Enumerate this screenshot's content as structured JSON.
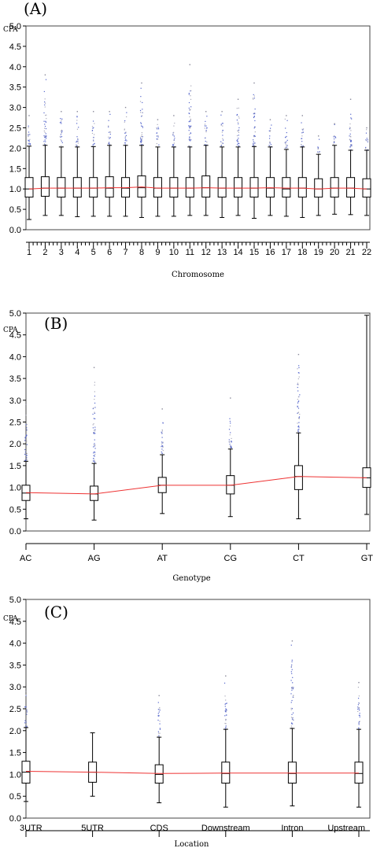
{
  "chart_data": [
    {
      "panel": "(A)",
      "type": "box",
      "ylabel": "CPA",
      "xlabel": "Chromosome",
      "ylim": [
        0,
        5
      ],
      "yticks": [
        "0.0",
        "0.5",
        "1.0",
        "1.5",
        "2.0",
        "2.5",
        "3.0",
        "3.5",
        "4.0",
        "4.5",
        "5.0"
      ],
      "categories": [
        "1",
        "2",
        "3",
        "4",
        "5",
        "6",
        "7",
        "8",
        "9",
        "10",
        "11",
        "12",
        "13",
        "14",
        "15",
        "16",
        "17",
        "18",
        "19",
        "20",
        "21",
        "22"
      ],
      "boxes": [
        {
          "q1": 0.8,
          "median": 1.0,
          "q3": 1.28,
          "wlo": 0.25,
          "whi": 2.05,
          "max": 2.8
        },
        {
          "q1": 0.82,
          "median": 1.02,
          "q3": 1.3,
          "wlo": 0.35,
          "whi": 2.07,
          "max": 3.8
        },
        {
          "q1": 0.8,
          "median": 1.02,
          "q3": 1.28,
          "wlo": 0.35,
          "whi": 2.03,
          "max": 2.9
        },
        {
          "q1": 0.8,
          "median": 1.02,
          "q3": 1.28,
          "wlo": 0.32,
          "whi": 2.03,
          "max": 2.9
        },
        {
          "q1": 0.8,
          "median": 1.02,
          "q3": 1.28,
          "wlo": 0.33,
          "whi": 2.04,
          "max": 2.9
        },
        {
          "q1": 0.8,
          "median": 1.02,
          "q3": 1.3,
          "wlo": 0.33,
          "whi": 2.07,
          "max": 2.9
        },
        {
          "q1": 0.8,
          "median": 1.02,
          "q3": 1.28,
          "wlo": 0.33,
          "whi": 2.07,
          "max": 3.0
        },
        {
          "q1": 0.8,
          "median": 1.03,
          "q3": 1.32,
          "wlo": 0.3,
          "whi": 2.07,
          "max": 3.6
        },
        {
          "q1": 0.8,
          "median": 1.02,
          "q3": 1.28,
          "wlo": 0.33,
          "whi": 2.03,
          "max": 2.7
        },
        {
          "q1": 0.8,
          "median": 1.02,
          "q3": 1.28,
          "wlo": 0.33,
          "whi": 2.03,
          "max": 2.8
        },
        {
          "q1": 0.8,
          "median": 1.02,
          "q3": 1.28,
          "wlo": 0.35,
          "whi": 2.03,
          "max": 4.05
        },
        {
          "q1": 0.8,
          "median": 1.03,
          "q3": 1.32,
          "wlo": 0.35,
          "whi": 2.07,
          "max": 2.9
        },
        {
          "q1": 0.8,
          "median": 1.02,
          "q3": 1.28,
          "wlo": 0.3,
          "whi": 2.03,
          "max": 2.9
        },
        {
          "q1": 0.8,
          "median": 1.02,
          "q3": 1.28,
          "wlo": 0.35,
          "whi": 2.03,
          "max": 3.2
        },
        {
          "q1": 0.8,
          "median": 1.02,
          "q3": 1.28,
          "wlo": 0.28,
          "whi": 2.04,
          "max": 3.6
        },
        {
          "q1": 0.8,
          "median": 1.02,
          "q3": 1.28,
          "wlo": 0.35,
          "whi": 2.03,
          "max": 2.7
        },
        {
          "q1": 0.8,
          "median": 1.0,
          "q3": 1.28,
          "wlo": 0.33,
          "whi": 1.97,
          "max": 2.8
        },
        {
          "q1": 0.8,
          "median": 1.02,
          "q3": 1.28,
          "wlo": 0.3,
          "whi": 2.03,
          "max": 2.8
        },
        {
          "q1": 0.8,
          "median": 1.0,
          "q3": 1.25,
          "wlo": 0.35,
          "whi": 1.85,
          "max": 2.3
        },
        {
          "q1": 0.8,
          "median": 1.02,
          "q3": 1.28,
          "wlo": 0.38,
          "whi": 2.07,
          "max": 2.6
        },
        {
          "q1": 0.8,
          "median": 1.02,
          "q3": 1.28,
          "wlo": 0.37,
          "whi": 1.95,
          "max": 3.2
        },
        {
          "q1": 0.8,
          "median": 1.0,
          "q3": 1.25,
          "wlo": 0.35,
          "whi": 1.95,
          "max": 2.5
        }
      ],
      "mean_line": [
        1.0,
        1.02,
        1.02,
        1.02,
        1.02,
        1.03,
        1.03,
        1.05,
        1.02,
        1.02,
        1.02,
        1.03,
        1.02,
        1.02,
        1.02,
        1.03,
        1.02,
        1.02,
        1.0,
        1.02,
        1.02,
        1.0
      ]
    },
    {
      "panel": "(B)",
      "type": "box",
      "ylabel": "CPA",
      "xlabel": "Genotype",
      "ylim": [
        0,
        5
      ],
      "yticks": [
        "0.0",
        "0.5",
        "1.0",
        "1.5",
        "2.0",
        "2.5",
        "3.0",
        "3.5",
        "4.0",
        "4.5",
        "5.0"
      ],
      "categories": [
        "AC",
        "AG",
        "AT",
        "CG",
        "CT",
        "GT"
      ],
      "boxes": [
        {
          "q1": 0.7,
          "median": 0.87,
          "q3": 1.05,
          "wlo": 0.28,
          "whi": 1.6,
          "max": 2.9
        },
        {
          "q1": 0.7,
          "median": 0.85,
          "q3": 1.03,
          "wlo": 0.25,
          "whi": 1.55,
          "max": 3.75
        },
        {
          "q1": 0.88,
          "median": 1.05,
          "q3": 1.23,
          "wlo": 0.4,
          "whi": 1.75,
          "max": 2.8
        },
        {
          "q1": 0.85,
          "median": 1.05,
          "q3": 1.27,
          "wlo": 0.33,
          "whi": 1.88,
          "max": 3.05
        },
        {
          "q1": 0.95,
          "median": 1.25,
          "q3": 1.5,
          "wlo": 0.28,
          "whi": 2.25,
          "max": 4.05
        },
        {
          "q1": 1.0,
          "median": 1.22,
          "q3": 1.45,
          "wlo": 0.38,
          "whi": 4.95,
          "max": 4.95
        }
      ],
      "mean_line": [
        0.88,
        0.85,
        1.05,
        1.05,
        1.25,
        1.22
      ]
    },
    {
      "panel": "(C)",
      "type": "box",
      "ylabel": "CPA",
      "xlabel": "Location",
      "ylim": [
        0,
        5
      ],
      "yticks": [
        "0.0",
        "0.5",
        "1.0",
        "1.5",
        "2.0",
        "2.5",
        "3.0",
        "3.5",
        "4.0",
        "4.5",
        "5.0"
      ],
      "categories": [
        "3UTR",
        "5UTR",
        "CDS",
        "Downstream",
        "Intron",
        "Upstream"
      ],
      "boxes": [
        {
          "q1": 0.8,
          "median": 1.05,
          "q3": 1.3,
          "wlo": 0.38,
          "whi": 2.07,
          "max": 2.9
        },
        {
          "q1": 0.82,
          "median": 1.05,
          "q3": 1.28,
          "wlo": 0.5,
          "whi": 1.95,
          "max": 1.95
        },
        {
          "q1": 0.8,
          "median": 1.0,
          "q3": 1.22,
          "wlo": 0.35,
          "whi": 1.85,
          "max": 2.8
        },
        {
          "q1": 0.8,
          "median": 1.02,
          "q3": 1.28,
          "wlo": 0.25,
          "whi": 2.03,
          "max": 3.25
        },
        {
          "q1": 0.8,
          "median": 1.02,
          "q3": 1.28,
          "wlo": 0.28,
          "whi": 2.05,
          "max": 4.05
        },
        {
          "q1": 0.8,
          "median": 1.02,
          "q3": 1.28,
          "wlo": 0.25,
          "whi": 2.03,
          "max": 3.1
        }
      ],
      "mean_line": [
        1.07,
        1.05,
        1.02,
        1.03,
        1.03,
        1.03
      ]
    }
  ]
}
